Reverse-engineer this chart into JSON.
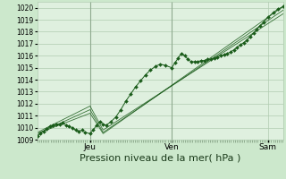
{
  "title": "",
  "xlabel": "Pression niveau de la mer( hPa )",
  "ylim": [
    1009,
    1020.5
  ],
  "xlim": [
    0,
    1
  ],
  "yticks": [
    1009,
    1010,
    1011,
    1012,
    1013,
    1014,
    1015,
    1016,
    1017,
    1018,
    1019,
    1020
  ],
  "xtick_positions": [
    0.215,
    0.547,
    0.938
  ],
  "xtick_labels": [
    "Jeu",
    "Ven",
    "Sam"
  ],
  "bg_color": "#cce8cc",
  "plot_bg_color": "#dff0df",
  "grid_color": "#b0ccb0",
  "line_color": "#1a5c1a",
  "vline_color": "#8faa8f",
  "vline_positions": [
    0.215,
    0.547
  ],
  "series1_x": [
    0.0,
    0.013,
    0.026,
    0.039,
    0.052,
    0.065,
    0.078,
    0.091,
    0.104,
    0.117,
    0.13,
    0.143,
    0.156,
    0.169,
    0.182,
    0.195,
    0.215,
    0.228,
    0.241,
    0.254,
    0.268,
    0.281,
    0.3,
    0.32,
    0.34,
    0.36,
    0.38,
    0.4,
    0.42,
    0.44,
    0.46,
    0.48,
    0.5,
    0.52,
    0.547,
    0.56,
    0.573,
    0.586,
    0.6,
    0.613,
    0.626,
    0.64,
    0.653,
    0.666,
    0.68,
    0.693,
    0.706,
    0.72,
    0.733,
    0.746,
    0.76,
    0.773,
    0.786,
    0.8,
    0.813,
    0.826,
    0.84,
    0.853,
    0.866,
    0.88,
    0.893,
    0.906,
    0.92,
    0.938,
    0.96,
    0.98,
    1.0
  ],
  "series1_y": [
    1009.3,
    1009.5,
    1009.7,
    1009.9,
    1010.1,
    1010.2,
    1010.3,
    1010.3,
    1010.4,
    1010.2,
    1010.1,
    1010.0,
    1009.8,
    1009.7,
    1009.8,
    1009.6,
    1009.5,
    1009.8,
    1010.2,
    1010.5,
    1010.3,
    1010.2,
    1010.5,
    1010.9,
    1011.5,
    1012.2,
    1012.8,
    1013.4,
    1013.9,
    1014.4,
    1014.8,
    1015.1,
    1015.3,
    1015.2,
    1015.0,
    1015.4,
    1015.8,
    1016.2,
    1016.0,
    1015.7,
    1015.5,
    1015.5,
    1015.5,
    1015.6,
    1015.6,
    1015.7,
    1015.7,
    1015.8,
    1015.9,
    1016.0,
    1016.1,
    1016.2,
    1016.3,
    1016.5,
    1016.7,
    1016.9,
    1017.1,
    1017.3,
    1017.6,
    1017.9,
    1018.2,
    1018.5,
    1018.8,
    1019.2,
    1019.6,
    1019.9,
    1020.1
  ],
  "series2_x": [
    0.0,
    0.215,
    0.268,
    1.0
  ],
  "series2_y": [
    1009.5,
    1011.2,
    1009.5,
    1020.1
  ],
  "series3_x": [
    0.0,
    0.215,
    0.268,
    1.0
  ],
  "series3_y": [
    1009.5,
    1011.5,
    1009.6,
    1019.8
  ],
  "series4_x": [
    0.0,
    0.215,
    0.268,
    1.0
  ],
  "series4_y": [
    1009.6,
    1011.8,
    1009.8,
    1019.5
  ],
  "xlabel_fontsize": 8,
  "ytick_fontsize": 5.5,
  "xtick_fontsize": 6.5
}
